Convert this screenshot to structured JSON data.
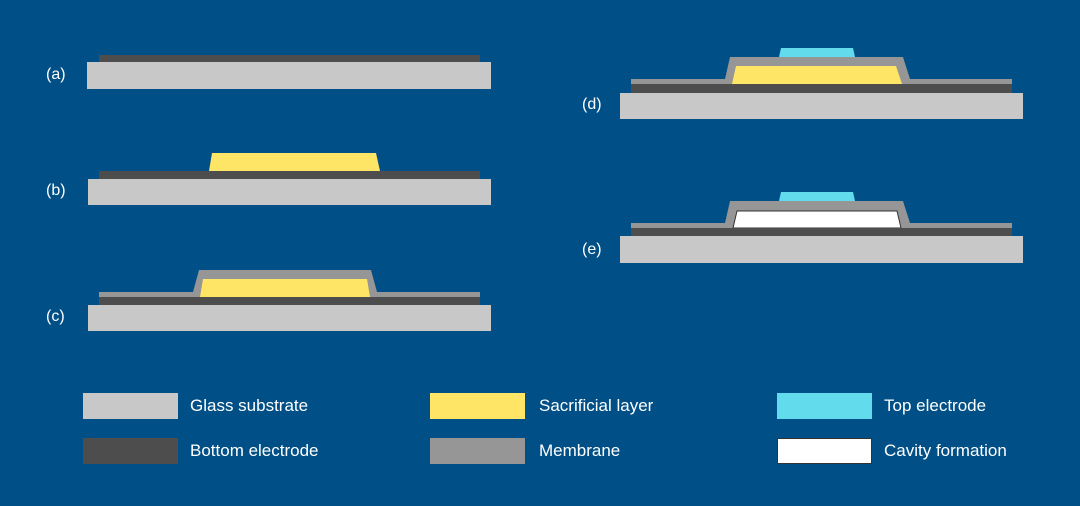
{
  "colors": {
    "background": "#004f86",
    "glass_substrate": "#c8c8c8",
    "bottom_electrode": "#4d4d4d",
    "sacrificial_layer": "#ffe566",
    "membrane": "#969696",
    "top_electrode": "#62dced",
    "cavity": "#ffffff"
  },
  "steps": [
    {
      "label": "(a)"
    },
    {
      "label": "(b)"
    },
    {
      "label": "(c)"
    },
    {
      "label": "(d)"
    },
    {
      "label": "(e)"
    }
  ],
  "legend": [
    {
      "label": "Glass substrate",
      "color": "#c8c8c8"
    },
    {
      "label": "Sacrificial layer",
      "color": "#ffe566"
    },
    {
      "label": "Top electrode",
      "color": "#62dced"
    },
    {
      "label": "Bottom electrode",
      "color": "#4d4d4d"
    },
    {
      "label": "Membrane",
      "color": "#969696"
    },
    {
      "label": "Cavity formation",
      "color": "#ffffff"
    }
  ]
}
